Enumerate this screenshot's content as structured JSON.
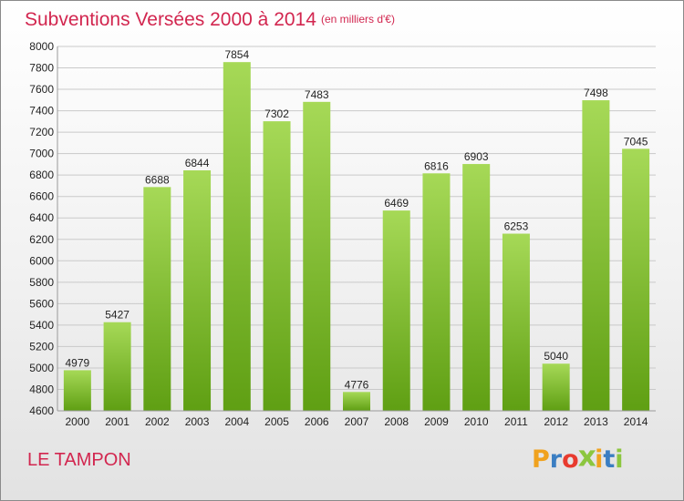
{
  "title": "Subventions Versées 2000 à 2014",
  "unit_note": "(en milliers d'€)",
  "commune": "LE TAMPON",
  "logo": {
    "letters": [
      "P",
      "r",
      "o",
      "x",
      "i",
      "t",
      "i"
    ],
    "colors": [
      "#f0a21e",
      "#3b7ec2",
      "#e83b2e",
      "#8cc63f",
      "#f0a21e",
      "#3b7ec2",
      "#8cc63f"
    ]
  },
  "colors": {
    "bar_top": "#a6d957",
    "bar_bottom": "#5f9f13",
    "grid": "#c9c9c9",
    "accent": "#d2264f"
  },
  "chart_data": {
    "type": "bar",
    "categories": [
      "2000",
      "2001",
      "2002",
      "2003",
      "2004",
      "2005",
      "2006",
      "2007",
      "2008",
      "2009",
      "2010",
      "2011",
      "2012",
      "2013",
      "2014"
    ],
    "values": [
      4979,
      5427,
      6688,
      6844,
      7854,
      7302,
      7483,
      4776,
      6469,
      6816,
      6903,
      6253,
      5040,
      7498,
      7045
    ],
    "ylim": [
      4600,
      8000
    ],
    "yticks": [
      4600,
      4800,
      5000,
      5200,
      5400,
      5600,
      5800,
      6000,
      6200,
      6400,
      6600,
      6800,
      7000,
      7200,
      7400,
      7600,
      7800,
      8000
    ],
    "grid": true,
    "title": "Subventions Versées 2000 à 2014",
    "xlabel": "",
    "ylabel": ""
  }
}
